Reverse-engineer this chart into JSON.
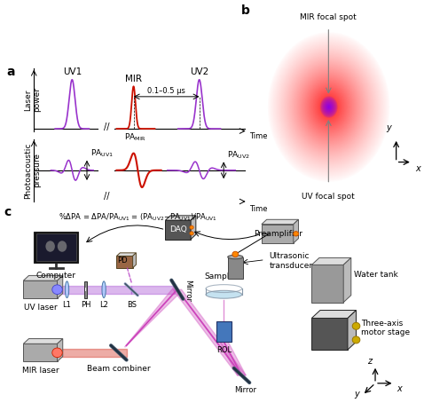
{
  "panel_a_label": "a",
  "panel_b_label": "b",
  "panel_c_label": "c",
  "uv_color": "#9933CC",
  "mir_color": "#CC1100",
  "mix_color": "#CC44BB",
  "bg_color": "#FFFFFF",
  "small_fs": 6.5,
  "med_fs": 7.5,
  "bold_fs": 9
}
